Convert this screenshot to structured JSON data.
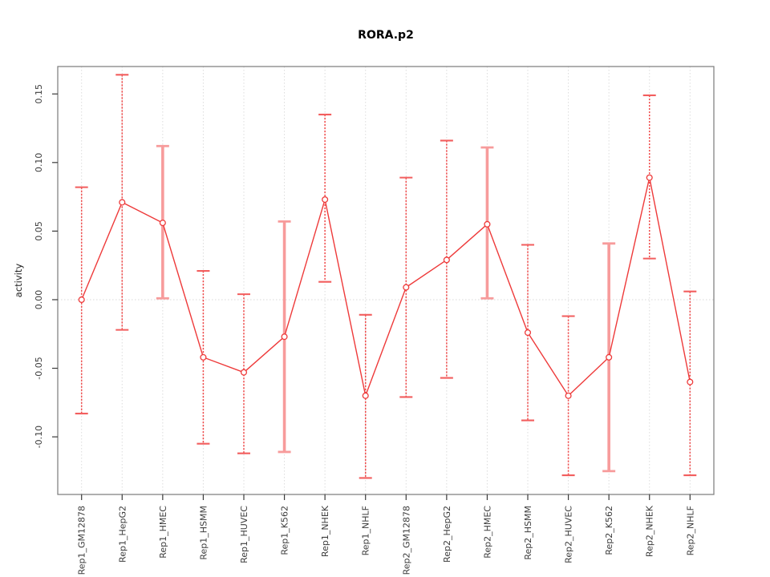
{
  "title": "RORA.p2",
  "chart_data": {
    "type": "line",
    "title": "RORA.p2",
    "xlabel": "",
    "ylabel": "activity",
    "ylim": [
      -0.142,
      0.17
    ],
    "yticks": [
      -0.1,
      -0.05,
      0.0,
      0.05,
      0.1,
      0.15
    ],
    "ytick_labels": [
      "-0.10",
      "-0.05",
      "0.00",
      "0.05",
      "0.10",
      "0.15"
    ],
    "grid": "dotted light-gray vertical line at every category; dotted horizontal line at y=0",
    "legend_position": "none",
    "point_marker": "open-circle",
    "categories": [
      "Rep1_GM12878",
      "Rep1_HepG2",
      "Rep1_HMEC",
      "Rep1_HSMM",
      "Rep1_HUVEC",
      "Rep1_K562",
      "Rep1_NHEK",
      "Rep1_NHLF",
      "Rep2_GM12878",
      "Rep2_HepG2",
      "Rep2_HMEC",
      "Rep2_HSMM",
      "Rep2_HUVEC",
      "Rep2_K562",
      "Rep2_NHEK",
      "Rep2_NHLF"
    ],
    "series": [
      {
        "name": "activity",
        "values": [
          0.0,
          0.071,
          0.056,
          -0.042,
          -0.053,
          -0.027,
          0.073,
          -0.07,
          0.009,
          0.029,
          0.055,
          -0.024,
          -0.07,
          -0.042,
          0.089,
          -0.06
        ],
        "error_low": [
          -0.083,
          -0.022,
          0.001,
          -0.105,
          -0.112,
          -0.111,
          0.013,
          -0.13,
          -0.071,
          -0.057,
          0.001,
          -0.088,
          -0.128,
          -0.125,
          0.03,
          -0.128
        ],
        "error_high": [
          0.082,
          0.164,
          0.112,
          0.021,
          0.004,
          0.057,
          0.135,
          -0.011,
          0.089,
          0.116,
          0.111,
          0.04,
          -0.012,
          0.041,
          0.149,
          0.006
        ],
        "bar_style": [
          "thin",
          "thin",
          "thick",
          "thin",
          "thin",
          "thick",
          "thin",
          "thin",
          "thin",
          "thin",
          "thick",
          "thin",
          "thin",
          "thick",
          "thin",
          "thin"
        ]
      }
    ],
    "colors": {
      "line": "#ee3a3a",
      "point_stroke": "#ee3a3a",
      "bar_thin": "#ef4c4c",
      "bar_cap": "#f25e5e",
      "bar_thick": "#f79b9b",
      "grid": "#dcdcdc",
      "zero_line": "#d8d8d8",
      "axis_frame": "#7a7a7a",
      "tick": "#3a3a3a",
      "tick_text": "#3c3c3c",
      "title_color": "#000000"
    }
  }
}
